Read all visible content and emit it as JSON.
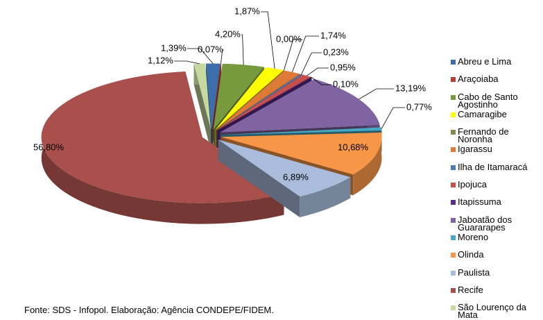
{
  "chart_data": {
    "type": "pie",
    "categories": [
      "Abreu e Lima",
      "Araçoiaba",
      "Cabo de Santo Agostinho",
      "Camaragibe",
      "Fernando de Noronha",
      "Igarassu",
      "Ilha de Itamaracá",
      "Ipojuca",
      "Itapissuma",
      "Jaboatão dos Guararapes",
      "Moreno",
      "Olinda",
      "Paulista",
      "Recife",
      "São Lourenço da Mata"
    ],
    "values": [
      1.39,
      0.07,
      4.2,
      1.87,
      0.0,
      1.74,
      0.23,
      0.95,
      0.1,
      13.19,
      0.77,
      10.68,
      6.89,
      56.8,
      1.12
    ],
    "value_labels": [
      "1,39%",
      "0,07%",
      "4,20%",
      "1,87%",
      "0,00%",
      "1,74%",
      "0,23%",
      "0,95%",
      "0,10%",
      "13,19%",
      "0,77%",
      "10,68%",
      "6,89%",
      "56,80%",
      "1,12%"
    ],
    "colors": [
      "#3c6eac",
      "#b83c38",
      "#779a3e",
      "#ffff00",
      "#8c8650",
      "#dc7a36",
      "#4a7cb8",
      "#c6504c",
      "#5a2a86",
      "#8064a2",
      "#46a8c2",
      "#f79646",
      "#a9bcdc",
      "#a9504c",
      "#c6d9a0"
    ],
    "legend": "right",
    "source": "Fonte: SDS - Infopol. Elaboração: Agência CONDEPE/FIDEM."
  }
}
